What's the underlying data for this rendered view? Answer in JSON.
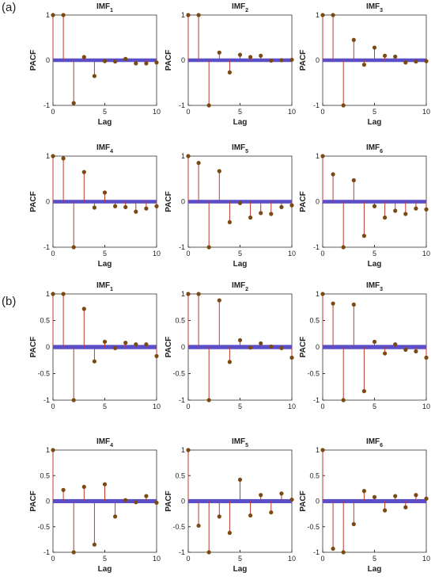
{
  "panel_labels": [
    "(a)",
    "(b)"
  ],
  "chart_data": [
    {
      "type": "stem",
      "title": "IMF",
      "title_sub": "1",
      "xlabel": "Lag",
      "ylabel": "PACF",
      "x": [
        0,
        1,
        2,
        3,
        4,
        5,
        6,
        7,
        8,
        9,
        10
      ],
      "values": [
        1,
        1,
        -0.95,
        0.07,
        -0.35,
        -0.02,
        -0.03,
        0.03,
        -0.07,
        -0.07,
        -0.05
      ],
      "xlim": [
        0,
        10
      ],
      "ylim": [
        -1,
        1
      ],
      "xticks": [
        0,
        5,
        10
      ],
      "yticks": [
        -1,
        0,
        1
      ],
      "bounds": [
        -0.04,
        0.04
      ],
      "color": "#c0392b",
      "marker_color": "#7a4a12",
      "bounds_color": "#5b4fc9"
    },
    {
      "type": "stem",
      "title": "IMF",
      "title_sub": "2",
      "xlabel": "Lag",
      "ylabel": "PACF",
      "x": [
        0,
        1,
        2,
        3,
        4,
        5,
        6,
        7,
        8,
        9,
        10
      ],
      "values": [
        1,
        1,
        -1,
        0.17,
        -0.27,
        0.12,
        0.07,
        0.1,
        -0.01,
        0,
        0.01
      ],
      "xlim": [
        0,
        10
      ],
      "ylim": [
        -1,
        1
      ],
      "xticks": [
        0,
        5,
        10
      ],
      "yticks": [
        -1,
        0,
        1
      ],
      "bounds": [
        -0.04,
        0.04
      ],
      "color": "#c0392b",
      "marker_color": "#7a4a12",
      "bounds_color": "#5b4fc9"
    },
    {
      "type": "stem",
      "title": "IMF",
      "title_sub": "3",
      "xlabel": "Lag",
      "ylabel": "PACF",
      "x": [
        0,
        1,
        2,
        3,
        4,
        5,
        6,
        7,
        8,
        9,
        10
      ],
      "values": [
        1,
        1,
        -1,
        0.45,
        -0.1,
        0.28,
        0.1,
        0.08,
        -0.05,
        -0.03,
        -0.02
      ],
      "xlim": [
        0,
        10
      ],
      "ylim": [
        -1,
        1
      ],
      "xticks": [
        0,
        5,
        10
      ],
      "yticks": [
        -1,
        0,
        1
      ],
      "bounds": [
        -0.04,
        0.04
      ],
      "color": "#c0392b",
      "marker_color": "#7a4a12",
      "bounds_color": "#5b4fc9"
    },
    {
      "type": "stem",
      "title": "IMF",
      "title_sub": "4",
      "xlabel": "Lag",
      "ylabel": "PACF",
      "x": [
        0,
        1,
        2,
        3,
        4,
        5,
        6,
        7,
        8,
        9,
        10
      ],
      "values": [
        1,
        0.95,
        -1,
        0.65,
        -0.13,
        0.2,
        -0.1,
        -0.12,
        -0.22,
        -0.15,
        -0.1
      ],
      "xlim": [
        0,
        10
      ],
      "ylim": [
        -1,
        1
      ],
      "xticks": [
        0,
        5,
        10
      ],
      "yticks": [
        -1,
        0,
        1
      ],
      "bounds": [
        -0.04,
        0.04
      ],
      "color": "#c0392b",
      "marker_color": "#7a4a12",
      "bounds_color": "#5b4fc9"
    },
    {
      "type": "stem",
      "title": "IMF",
      "title_sub": "5",
      "xlabel": "Lag",
      "ylabel": "PACF",
      "x": [
        0,
        1,
        2,
        3,
        4,
        5,
        6,
        7,
        8,
        9,
        10
      ],
      "values": [
        1,
        0.85,
        -1,
        0.67,
        -0.45,
        -0.03,
        -0.35,
        -0.25,
        -0.27,
        -0.12,
        -0.08
      ],
      "xlim": [
        0,
        10
      ],
      "ylim": [
        -1,
        1
      ],
      "xticks": [
        0,
        5,
        10
      ],
      "yticks": [
        -1,
        0,
        1
      ],
      "bounds": [
        -0.04,
        0.04
      ],
      "color": "#c0392b",
      "marker_color": "#7a4a12",
      "bounds_color": "#5b4fc9"
    },
    {
      "type": "stem",
      "title": "IMF",
      "title_sub": "6",
      "xlabel": "Lag",
      "ylabel": "PACF",
      "x": [
        0,
        1,
        2,
        3,
        4,
        5,
        6,
        7,
        8,
        9,
        10
      ],
      "values": [
        1,
        0.6,
        -1,
        0.47,
        -0.75,
        -0.1,
        -0.35,
        -0.2,
        -0.27,
        -0.15,
        -0.17
      ],
      "xlim": [
        0,
        10
      ],
      "ylim": [
        -1,
        1
      ],
      "xticks": [
        0,
        5,
        10
      ],
      "yticks": [
        -1,
        0,
        1
      ],
      "bounds": [
        -0.04,
        0.04
      ],
      "color": "#c0392b",
      "marker_color": "#7a4a12",
      "bounds_color": "#5b4fc9"
    },
    {
      "type": "stem",
      "title": "IMF",
      "title_sub": "1",
      "ylabel": "PACF",
      "x": [
        0,
        1,
        2,
        3,
        4,
        5,
        6,
        7,
        8,
        9,
        10
      ],
      "values": [
        1,
        1,
        -1,
        0.72,
        -0.27,
        0.1,
        -0.02,
        0.08,
        0.05,
        0.05,
        -0.17
      ],
      "xlim": [
        0,
        10
      ],
      "ylim": [
        -1,
        1
      ],
      "xticks": [
        0,
        5,
        10
      ],
      "yticks": [
        -1,
        -0.5,
        0,
        0.5,
        1
      ],
      "bounds": [
        -0.04,
        0.04
      ],
      "color": "#c0392b",
      "marker_color": "#7a4a12",
      "bounds_color": "#5b4fc9"
    },
    {
      "type": "stem",
      "title": "IMF",
      "title_sub": "2",
      "ylabel": "PACF",
      "x": [
        0,
        1,
        2,
        3,
        4,
        5,
        6,
        7,
        8,
        9,
        10
      ],
      "values": [
        1,
        1,
        -1,
        0.88,
        -0.28,
        0.13,
        -0.01,
        0.07,
        0.01,
        -0.02,
        -0.2
      ],
      "xlim": [
        0,
        10
      ],
      "ylim": [
        -1,
        1
      ],
      "xticks": [
        0,
        5,
        10
      ],
      "yticks": [
        -1,
        -0.5,
        0,
        0.5,
        1
      ],
      "bounds": [
        -0.04,
        0.04
      ],
      "color": "#c0392b",
      "marker_color": "#7a4a12",
      "bounds_color": "#5b4fc9"
    },
    {
      "type": "stem",
      "title": "IMF",
      "title_sub": "3",
      "ylabel": "PACF",
      "x": [
        0,
        1,
        2,
        3,
        4,
        5,
        6,
        7,
        8,
        9,
        10
      ],
      "values": [
        1,
        0.82,
        -1,
        0.8,
        -0.83,
        0.1,
        -0.12,
        0.05,
        -0.05,
        -0.08,
        -0.2
      ],
      "xlim": [
        0,
        10
      ],
      "ylim": [
        -1,
        1
      ],
      "xticks": [
        0,
        5,
        10
      ],
      "yticks": [
        -1,
        -0.5,
        0,
        0.5,
        1
      ],
      "bounds": [
        -0.04,
        0.04
      ],
      "color": "#c0392b",
      "marker_color": "#7a4a12",
      "bounds_color": "#5b4fc9"
    },
    {
      "type": "stem",
      "title": "IMF",
      "title_sub": "4",
      "xlabel": "Lag",
      "ylabel": "PACF",
      "x": [
        0,
        1,
        2,
        3,
        4,
        5,
        6,
        7,
        8,
        9,
        10
      ],
      "values": [
        1,
        0.22,
        -1,
        0.28,
        -0.85,
        0.33,
        -0.3,
        0.02,
        -0.02,
        0.1,
        -0.03
      ],
      "xlim": [
        0,
        10
      ],
      "ylim": [
        -1,
        1
      ],
      "xticks": [
        0,
        5,
        10
      ],
      "yticks": [
        -1,
        -0.5,
        0,
        0.5,
        1
      ],
      "bounds": [
        -0.04,
        0.04
      ],
      "color": "#c0392b",
      "marker_color": "#7a4a12",
      "bounds_color": "#5b4fc9"
    },
    {
      "type": "stem",
      "title": "IMF",
      "title_sub": "5",
      "xlabel": "Lag",
      "ylabel": "PACF",
      "x": [
        0,
        1,
        2,
        3,
        4,
        5,
        6,
        7,
        8,
        9,
        10
      ],
      "values": [
        1,
        -0.48,
        -1,
        -0.3,
        -0.62,
        0.42,
        -0.28,
        0.12,
        -0.22,
        0.15,
        0.03
      ],
      "xlim": [
        0,
        10
      ],
      "ylim": [
        -1,
        1
      ],
      "xticks": [
        0,
        5,
        10
      ],
      "yticks": [
        -1,
        -0.5,
        0,
        0.5,
        1
      ],
      "bounds": [
        -0.04,
        0.04
      ],
      "color": "#c0392b",
      "marker_color": "#7a4a12",
      "bounds_color": "#5b4fc9"
    },
    {
      "type": "stem",
      "title": "IMF",
      "title_sub": "6",
      "xlabel": "Lag",
      "ylabel": "PACF",
      "x": [
        0,
        1,
        2,
        3,
        4,
        5,
        6,
        7,
        8,
        9,
        10
      ],
      "values": [
        1,
        -0.93,
        -1,
        -0.45,
        0.2,
        0.08,
        -0.18,
        0.1,
        -0.12,
        0.12,
        0.05
      ],
      "xlim": [
        0,
        10
      ],
      "ylim": [
        -1,
        1
      ],
      "xticks": [
        0,
        5,
        10
      ],
      "yticks": [
        -1,
        -0.5,
        0,
        0.5,
        1
      ],
      "bounds": [
        -0.04,
        0.04
      ],
      "color": "#c0392b",
      "marker_color": "#7a4a12",
      "bounds_color": "#5b4fc9"
    }
  ]
}
